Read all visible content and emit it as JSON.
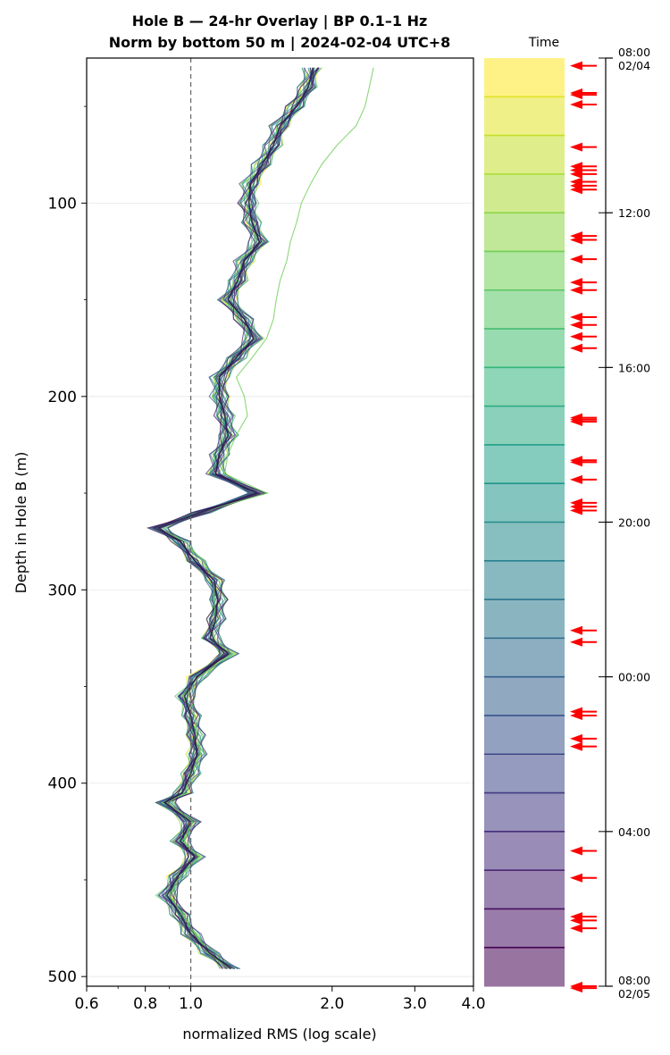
{
  "chart_data": {
    "type": "line",
    "title_line1": "Hole B — 24-hr Overlay  |  BP 0.1–1 Hz",
    "title_line2": "Norm by bottom 50 m  |  2024-02-04 UTC+8",
    "xlabel": "normalized RMS  (log scale)",
    "ylabel": "Depth in Hole B (m)",
    "x_scale": "log",
    "xlim": [
      0.6,
      4.0
    ],
    "ylim": [
      505,
      25
    ],
    "x_ticks": [
      {
        "value": 0.6,
        "label": "0.6"
      },
      {
        "value": 0.8,
        "label": "0.8"
      },
      {
        "value": 1.0,
        "label": "1.0"
      },
      {
        "value": 2.0,
        "label": "2.0"
      },
      {
        "value": 3.0,
        "label": "3.0"
      },
      {
        "value": 4.0,
        "label": "4.0"
      }
    ],
    "y_ticks": [
      {
        "value": 100,
        "label": "100"
      },
      {
        "value": 200,
        "label": "200"
      },
      {
        "value": 300,
        "label": "300"
      },
      {
        "value": 400,
        "label": "400"
      },
      {
        "value": 500,
        "label": "500"
      }
    ],
    "reference_line_x": 1.0,
    "grid": "horizontal",
    "depths": [
      30,
      40,
      50,
      60,
      70,
      80,
      90,
      100,
      110,
      120,
      130,
      140,
      150,
      160,
      170,
      180,
      190,
      200,
      210,
      220,
      230,
      240,
      250,
      260,
      268,
      275,
      285,
      295,
      305,
      315,
      325,
      333,
      345,
      355,
      365,
      375,
      385,
      395,
      405,
      410,
      420,
      430,
      438,
      448,
      458,
      468,
      478,
      488,
      496
    ],
    "representative_profile": [
      1.82,
      1.78,
      1.68,
      1.55,
      1.5,
      1.42,
      1.34,
      1.33,
      1.35,
      1.4,
      1.3,
      1.26,
      1.2,
      1.3,
      1.36,
      1.25,
      1.15,
      1.15,
      1.18,
      1.2,
      1.15,
      1.13,
      1.38,
      1.05,
      0.85,
      0.95,
      1.02,
      1.12,
      1.14,
      1.13,
      1.1,
      1.2,
      1.03,
      0.97,
      1.0,
      1.02,
      1.03,
      1.0,
      0.96,
      0.88,
      1.0,
      0.95,
      1.02,
      0.94,
      0.89,
      0.95,
      1.0,
      1.1,
      1.22
    ],
    "outlier_profile": [
      2.45,
      2.4,
      2.35,
      2.25,
      2.05,
      1.9,
      1.8,
      1.72,
      1.68,
      1.63,
      1.6,
      1.55,
      1.52,
      1.5,
      1.45,
      1.35,
      1.25,
      1.3,
      1.32,
      1.25,
      1.2,
      1.18,
      1.45,
      1.05,
      0.85,
      0.97,
      1.06,
      1.12,
      1.12,
      1.13,
      1.1,
      1.22,
      1.04,
      0.96,
      1.02,
      1.03,
      1.05,
      1.0,
      0.97,
      0.89,
      1.01,
      0.96,
      1.04,
      0.95,
      0.9,
      0.96,
      1.02,
      1.09,
      1.21
    ],
    "colorbar": {
      "label": "Time",
      "ticks": [
        {
          "label": "08:00",
          "sublabel": "02/04",
          "hour": 0
        },
        {
          "label": "12:00",
          "sublabel": "",
          "hour": 4
        },
        {
          "label": "16:00",
          "sublabel": "",
          "hour": 8
        },
        {
          "label": "20:00",
          "sublabel": "",
          "hour": 12
        },
        {
          "label": "00:00",
          "sublabel": "",
          "hour": 16
        },
        {
          "label": "04:00",
          "sublabel": "",
          "hour": 20
        },
        {
          "label": "08:00",
          "sublabel": "02/05",
          "hour": 24
        }
      ],
      "bands": 24,
      "colormap": [
        "#fde725",
        "#b5de2b",
        "#6ece58",
        "#35b779",
        "#1f9e89",
        "#26828e",
        "#31688e",
        "#3e4989",
        "#482878",
        "#440154"
      ]
    },
    "event_arrows_hours": [
      0.2,
      0.9,
      0.95,
      1.2,
      2.3,
      2.8,
      2.9,
      3.0,
      3.2,
      3.3,
      3.4,
      4.6,
      4.7,
      5.2,
      5.8,
      6.0,
      6.7,
      6.9,
      7.2,
      7.5,
      9.3,
      9.35,
      9.4,
      10.4,
      10.45,
      10.9,
      11.5,
      11.6,
      11.7,
      14.8,
      15.1,
      16.9,
      17.0,
      17.6,
      17.8,
      20.5,
      21.2,
      22.2,
      22.3,
      22.5,
      24.0,
      24.05
    ]
  }
}
